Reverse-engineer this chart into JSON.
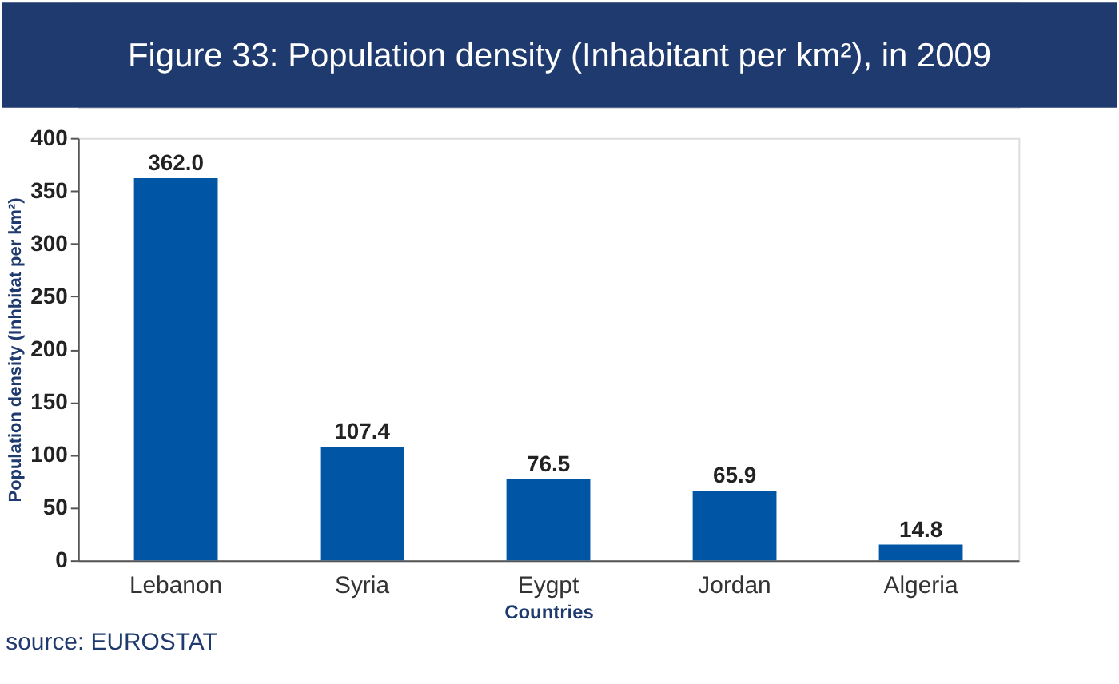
{
  "chart_data": {
    "type": "bar",
    "title": "Figure 33: Population density (Inhabitant per km²), in 2009",
    "xlabel": "Countries",
    "ylabel": "Population density (Inhbitat per km²)",
    "categories": [
      "Lebanon",
      "Syria",
      "Eygpt",
      "Jordan",
      "Algeria"
    ],
    "values": [
      362.0,
      107.4,
      76.5,
      65.9,
      14.8
    ],
    "value_labels": [
      "362.0",
      "107.4",
      "76.5",
      "65.9",
      "14.8"
    ],
    "color": "#0055a5",
    "ylim": [
      0,
      400
    ],
    "yticks": [
      0,
      50,
      100,
      150,
      200,
      250,
      300,
      350,
      400
    ],
    "grid": false,
    "annotations": [
      "source: EUROSTAT"
    ]
  }
}
